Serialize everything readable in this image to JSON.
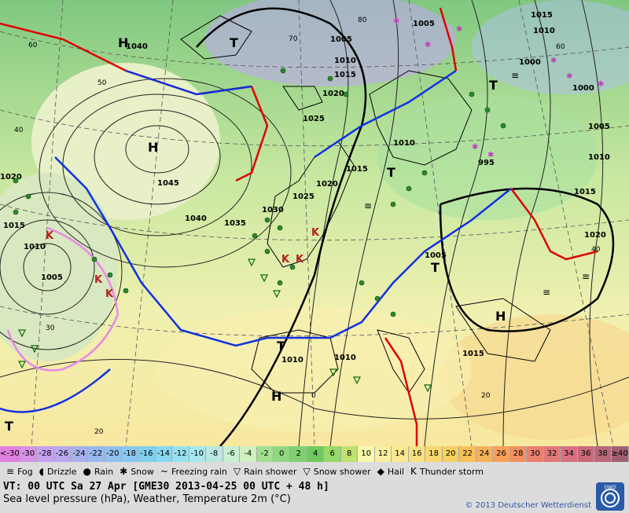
{
  "isobar_labels": [
    "1040",
    "1045",
    "1040",
    "1035",
    "1030",
    "1025",
    "1020",
    "1015",
    "1010",
    "1005",
    "1000",
    "995",
    "1005",
    "1010",
    "1015",
    "1020",
    "1015",
    "1010",
    "1005",
    "1025",
    "1020",
    "1015",
    "1010",
    "1005",
    "1010",
    "1010",
    "1015",
    "1020",
    "1015",
    "1000",
    "1005",
    "1010"
  ],
  "temp_scale": [
    "<-30",
    "-30",
    "-28",
    "-26",
    "-24",
    "-22",
    "-20",
    "-18",
    "-16",
    "-14",
    "-12",
    "-10",
    "-8",
    "-6",
    "-4",
    "-2",
    "0",
    "2",
    "4",
    "6",
    "8",
    "10",
    "12",
    "14",
    "16",
    "18",
    "20",
    "22",
    "24",
    "26",
    "28",
    "30",
    "32",
    "34",
    "36",
    "38",
    "≥40 °C"
  ],
  "temp_colors": [
    "#e080e0",
    "#d890e8",
    "#c8a0f0",
    "#b8a8f0",
    "#a8b0f0",
    "#98b8f0",
    "#90c0f0",
    "#88c8f0",
    "#80d0f0",
    "#88d8f0",
    "#98e0f0",
    "#a8e8f0",
    "#b8e8e0",
    "#c8f0d0",
    "#d0f0c0",
    "#a0e090",
    "#90d880",
    "#80d070",
    "#70c860",
    "#98d868",
    "#c0e070",
    "#f8f8b0",
    "#f8f0a0",
    "#f8e890",
    "#f8e080",
    "#f8d870",
    "#f8d060",
    "#f8c058",
    "#f8b058",
    "#f8a058",
    "#f09060",
    "#e88070",
    "#e07878",
    "#d87080",
    "#c86878",
    "#b86878",
    "#a06070"
  ],
  "legend": [
    {
      "symbol": "≡",
      "label": "Fog"
    },
    {
      "symbol": "◖",
      "label": "Drizzle"
    },
    {
      "symbol": "●",
      "label": "Rain"
    },
    {
      "symbol": "✱",
      "label": "Snow"
    },
    {
      "symbol": "~",
      "label": "Freezing rain"
    },
    {
      "symbol": "▽",
      "label": "Rain shower"
    },
    {
      "symbol": "▽",
      "label": "Snow shower"
    },
    {
      "symbol": "◆",
      "label": "Hail"
    },
    {
      "symbol": "K",
      "label": "Thunder storm"
    }
  ],
  "footer": {
    "valid_time": "VT: 00 UTC Sa  27 Apr [GME30 2013-04-25  00 UTC + 48 h]",
    "subtitle": "Sea level pressure (hPa), Weather, Temperature 2m (°C)",
    "copyright": "© 2013 Deutscher Wetterdienst",
    "logo_text": "DWD"
  },
  "pressure_centers": [
    "H",
    "H",
    "H",
    "H",
    "T",
    "T",
    "T",
    "T",
    "T",
    "T"
  ],
  "graticule_labels": [
    "60",
    "50",
    "40",
    "30",
    "20",
    "70",
    "80",
    "60",
    "0",
    "20",
    "40"
  ]
}
